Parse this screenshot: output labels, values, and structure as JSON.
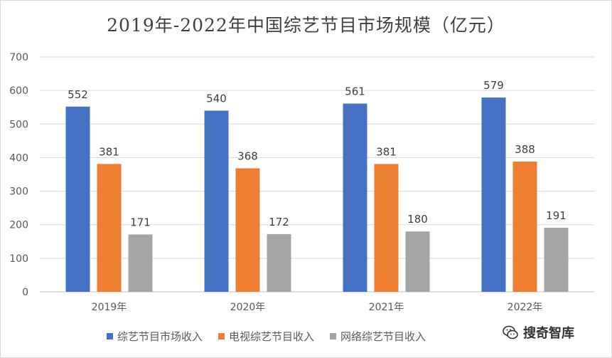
{
  "chart_data": {
    "type": "bar",
    "title": "2019年-2022年中国综艺节目市场规模（亿元）",
    "categories": [
      "2019年",
      "2020年",
      "2021年",
      "2022年"
    ],
    "series": [
      {
        "name": "综艺节目市场收入",
        "values": [
          552,
          540,
          561,
          579
        ],
        "color": "#4472c4"
      },
      {
        "name": "电视综艺节目收入",
        "values": [
          381,
          368,
          381,
          388
        ],
        "color": "#ed7d31"
      },
      {
        "name": "网络综艺节目收入",
        "values": [
          171,
          172,
          180,
          191
        ],
        "color": "#a5a5a5"
      }
    ],
    "ylim": [
      0,
      700
    ],
    "yticks": [
      0,
      100,
      200,
      300,
      400,
      500,
      600,
      700
    ],
    "grid": true,
    "legend_position": "bottom"
  },
  "watermark": {
    "text": "搜奇智库",
    "icon": "wechat-icon"
  }
}
